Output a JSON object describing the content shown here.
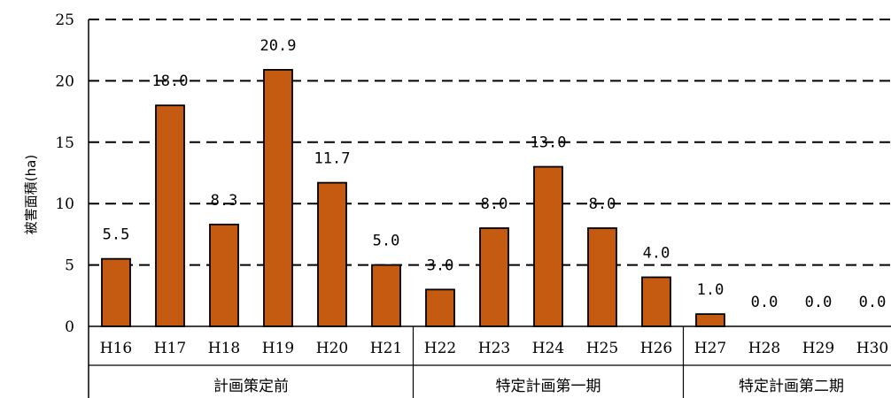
{
  "chart_data": {
    "type": "bar",
    "title": "",
    "ylabel": "被害面積(ha)",
    "xlabel": "",
    "ylim": [
      0,
      25
    ],
    "yticks": [
      0,
      5,
      10,
      15,
      20,
      25
    ],
    "grid": "dashed horizontal",
    "categories": [
      "H16",
      "H17",
      "H18",
      "H19",
      "H20",
      "H21",
      "H22",
      "H23",
      "H24",
      "H25",
      "H26",
      "H27",
      "H28",
      "H29",
      "H30"
    ],
    "values": [
      5.5,
      18.0,
      8.3,
      20.9,
      11.7,
      5.0,
      3.0,
      8.0,
      13.0,
      8.0,
      4.0,
      1.0,
      0.0,
      0.0,
      0.0
    ],
    "data_labels": [
      "5.5",
      "18.0",
      "8.3",
      "20.9",
      "11.7",
      "5.0",
      "3.0",
      "8.0",
      "13.0",
      "8.0",
      "4.0",
      "1.0",
      "0.0",
      "0.0",
      "0.0"
    ],
    "groups": [
      {
        "label": "計画策定前",
        "from": 0,
        "to": 5
      },
      {
        "label": "特定計画第一期",
        "from": 6,
        "to": 10
      },
      {
        "label": "特定計画第二期",
        "from": 11,
        "to": 14
      }
    ],
    "bar_color": "#C55A11",
    "bar_stroke": "#000000"
  }
}
